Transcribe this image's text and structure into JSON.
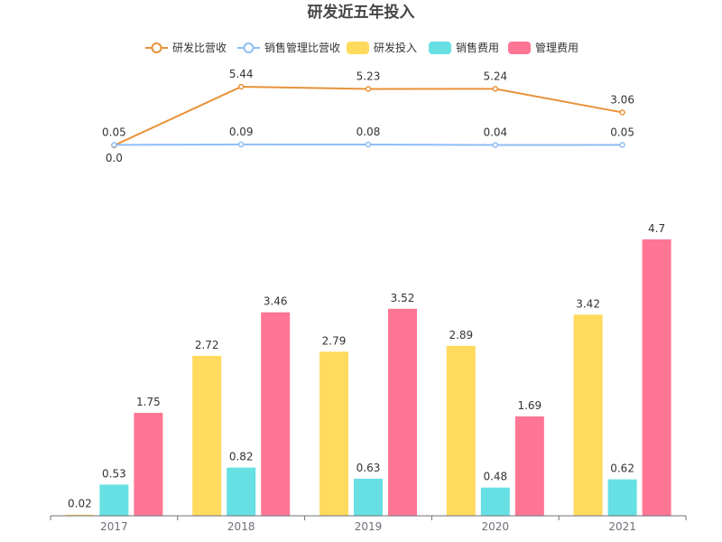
{
  "chart_data": {
    "type": "bar",
    "title": "研发近五年投入",
    "categories": [
      "2017",
      "2018",
      "2019",
      "2020",
      "2021"
    ],
    "legend_position": "top-center",
    "series": [
      {
        "name": "研发比营收",
        "kind": "line",
        "color": "#e8923a",
        "values": [
          0.0,
          5.44,
          5.23,
          5.24,
          3.06
        ],
        "labels": [
          "0.0",
          "5.44",
          "5.23",
          "5.24",
          "3.06"
        ]
      },
      {
        "name": "销售管理比营收",
        "kind": "line",
        "color": "#8fbdf4",
        "values": [
          0.05,
          0.09,
          0.08,
          0.04,
          0.05
        ],
        "labels": [
          "0.05",
          "0.09",
          "0.08",
          "0.04",
          "0.05"
        ]
      },
      {
        "name": "研发投入",
        "kind": "bar",
        "color": "#ffda5c",
        "values": [
          0.02,
          2.72,
          2.79,
          2.89,
          3.42
        ],
        "labels": [
          "0.02",
          "2.72",
          "2.79",
          "2.89",
          "3.42"
        ]
      },
      {
        "name": "销售费用",
        "kind": "bar",
        "color": "#66e0e3",
        "values": [
          0.53,
          0.82,
          0.63,
          0.48,
          0.62
        ],
        "labels": [
          "0.53",
          "0.82",
          "0.63",
          "0.48",
          "0.62"
        ]
      },
      {
        "name": "管理费用",
        "kind": "bar",
        "color": "#ff7594",
        "values": [
          1.75,
          3.46,
          3.52,
          1.69,
          4.7
        ],
        "labels": [
          "1.75",
          "3.46",
          "3.52",
          "1.69",
          "4.7"
        ]
      }
    ],
    "grid": false
  }
}
